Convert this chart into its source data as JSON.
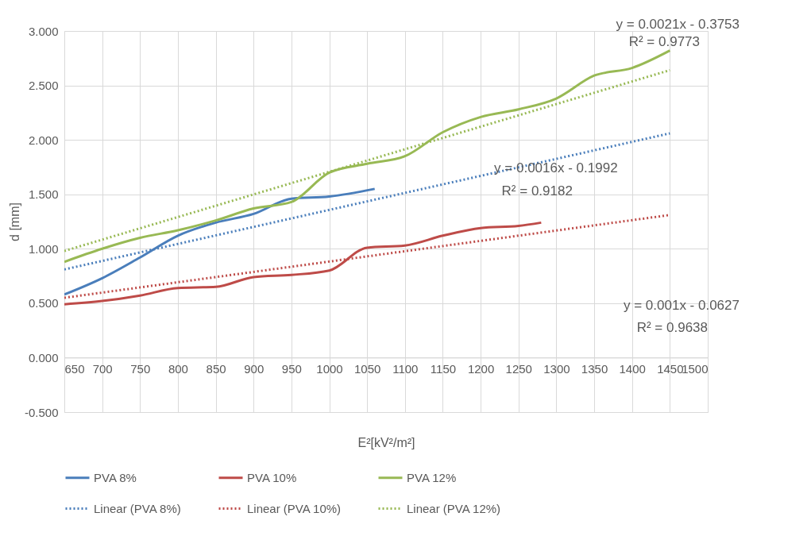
{
  "chart_data": {
    "type": "line",
    "xlabel": "E²[kV²/m²]",
    "ylabel": "d [mm]",
    "xlim": [
      650,
      1500
    ],
    "xticks": [
      650,
      700,
      750,
      800,
      850,
      900,
      950,
      1000,
      1050,
      1100,
      1150,
      1200,
      1250,
      1300,
      1350,
      1400,
      1450,
      1500
    ],
    "ylim": [
      -0.5,
      3.0
    ],
    "yticks": [
      {
        "value": -0.5,
        "label": "-0.500"
      },
      {
        "value": 0,
        "label": "0.000"
      },
      {
        "value": 0.5,
        "label": "0.500"
      },
      {
        "value": 1.0,
        "label": "1.000"
      },
      {
        "value": 1.5,
        "label": "1.500"
      },
      {
        "value": 2.0,
        "label": "2.000"
      },
      {
        "value": 2.5,
        "label": "2.500"
      },
      {
        "value": 3.0,
        "label": "3.000"
      }
    ],
    "grid": true,
    "legend": "bottom",
    "marker": "none",
    "series": [
      {
        "name": "PVA 8%",
        "color": "#4a7ebb",
        "line_style": "solid",
        "x": [
          650,
          700,
          750,
          800,
          850,
          900,
          950,
          1000,
          1060
        ],
        "values": [
          0.58,
          0.73,
          0.92,
          1.12,
          1.24,
          1.32,
          1.46,
          1.48,
          1.55
        ]
      },
      {
        "name": "PVA 10%",
        "color": "#be4b48",
        "line_style": "solid",
        "x": [
          650,
          700,
          750,
          800,
          850,
          900,
          950,
          1000,
          1050,
          1100,
          1150,
          1200,
          1250,
          1280
        ],
        "values": [
          0.49,
          0.52,
          0.57,
          0.64,
          0.65,
          0.74,
          0.76,
          0.8,
          1.01,
          1.03,
          1.12,
          1.19,
          1.21,
          1.24
        ]
      },
      {
        "name": "PVA 12%",
        "color": "#98b954",
        "line_style": "solid",
        "x": [
          650,
          700,
          750,
          800,
          850,
          900,
          950,
          1000,
          1050,
          1100,
          1150,
          1200,
          1250,
          1300,
          1350,
          1400,
          1450
        ],
        "values": [
          0.88,
          1.0,
          1.1,
          1.17,
          1.26,
          1.37,
          1.43,
          1.7,
          1.78,
          1.85,
          2.07,
          2.21,
          2.28,
          2.38,
          2.59,
          2.66,
          2.82
        ]
      },
      {
        "name": "Linear (PVA 8%)",
        "color": "#4a7ebb",
        "line_style": "dotted",
        "x": [
          650,
          1450
        ],
        "values": [
          0.81,
          2.06
        ]
      },
      {
        "name": "Linear (PVA 10%)",
        "color": "#be4b48",
        "line_style": "dotted",
        "x": [
          650,
          1450
        ],
        "values": [
          0.55,
          1.31
        ]
      },
      {
        "name": "Linear (PVA 12%)",
        "color": "#98b954",
        "line_style": "dotted",
        "x": [
          650,
          1450
        ],
        "values": [
          0.98,
          2.64
        ]
      }
    ],
    "annotations": [
      "y = 0.0021x - 0.3753",
      "R² = 0.9773",
      "y = 0.0016x - 0.1992",
      "R² = 0.9182",
      "y = 0.001x - 0.0627",
      "R² = 0.9638"
    ]
  }
}
